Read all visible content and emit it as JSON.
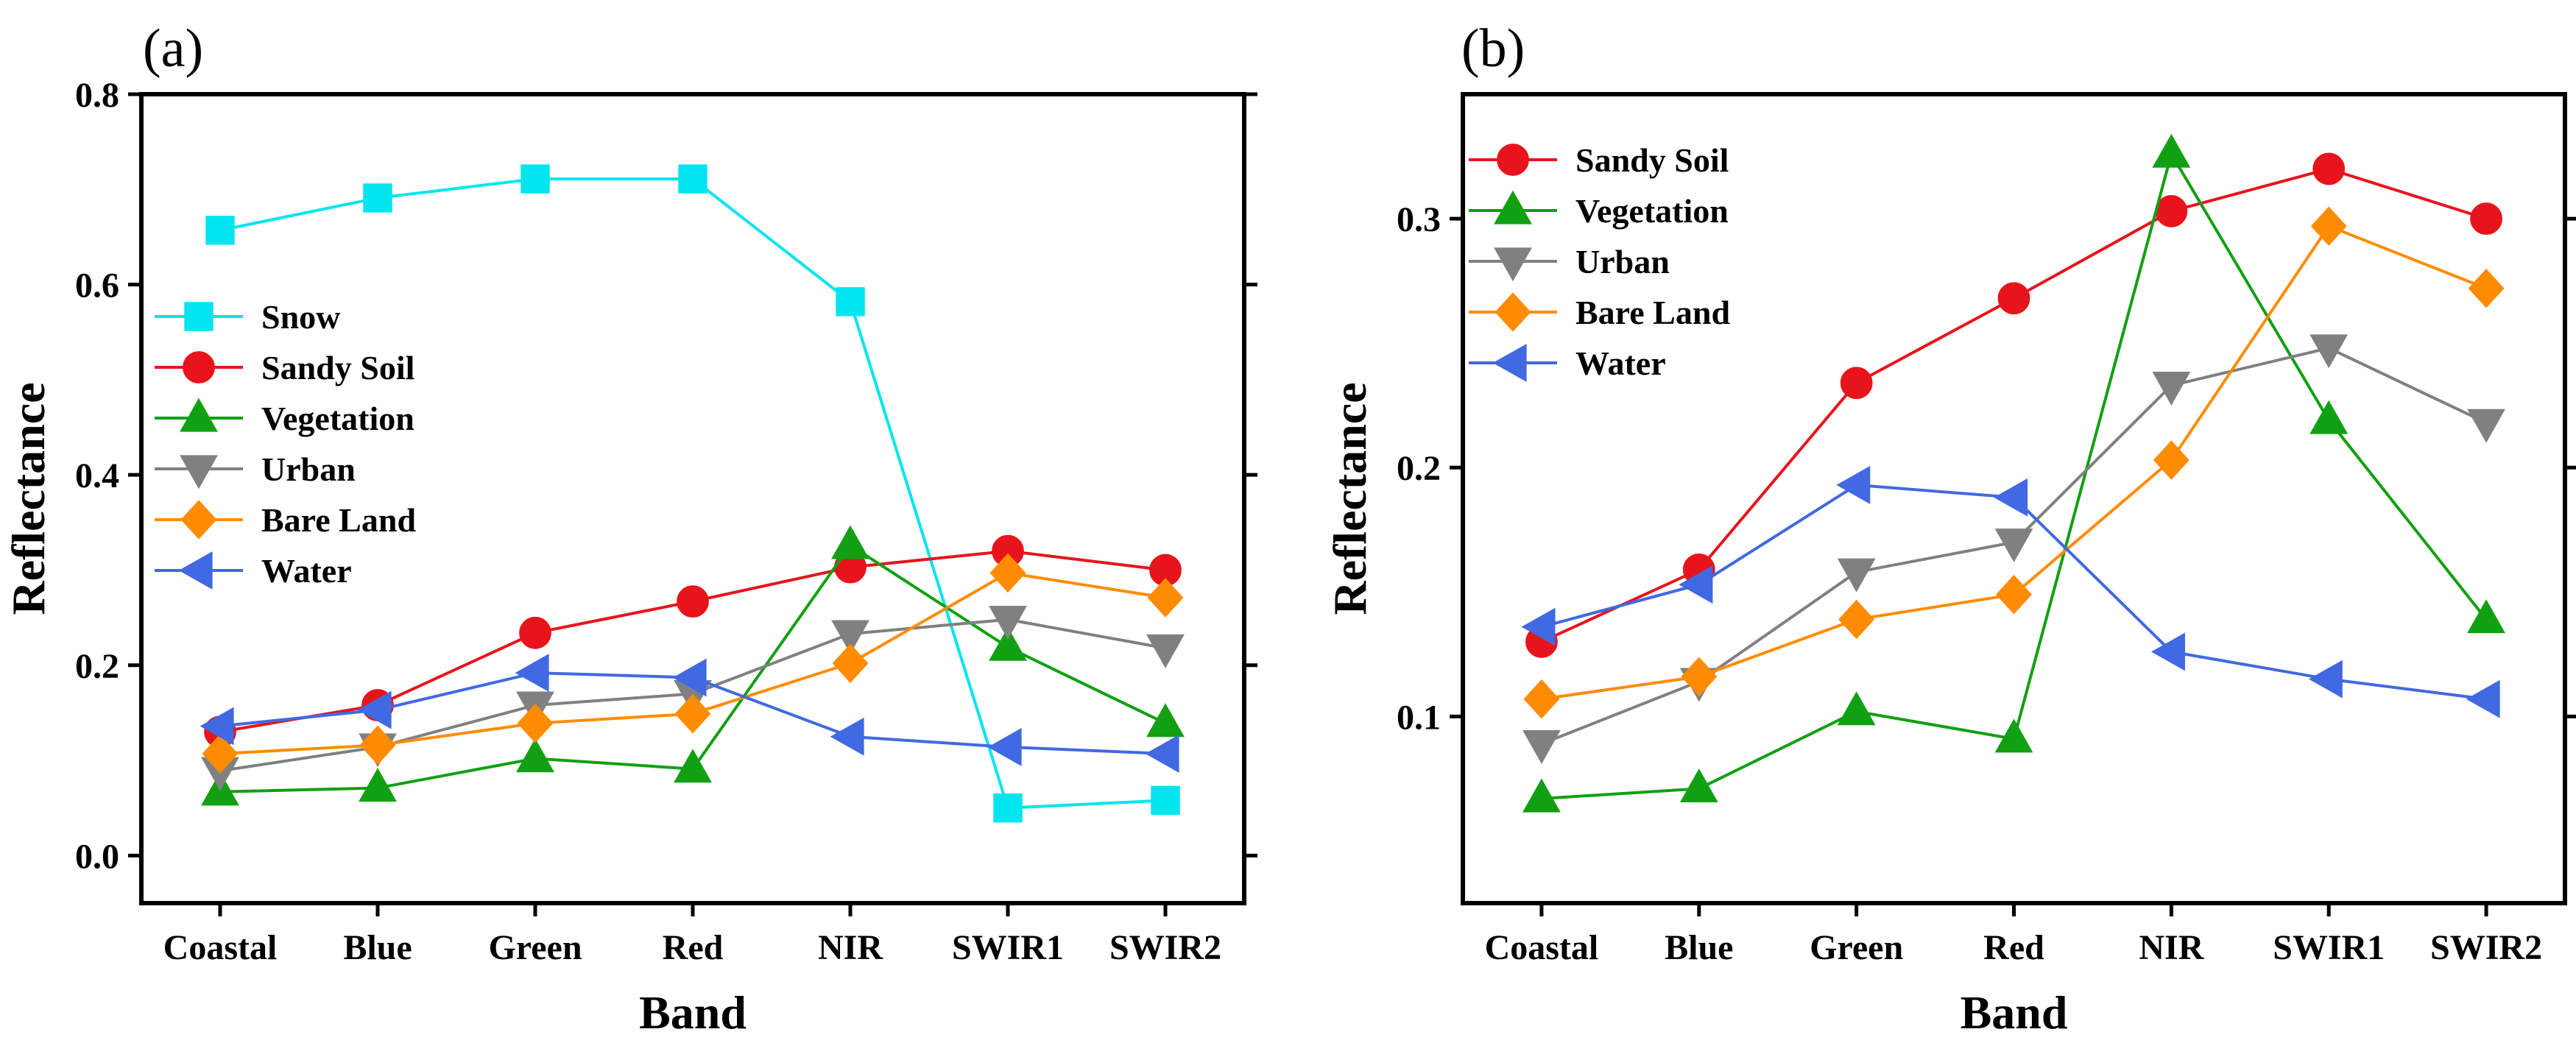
{
  "chart_data": [
    {
      "type": "line",
      "panel_label": "(a)",
      "xlabel": "Band",
      "ylabel": "Reflectance",
      "categories": [
        "Coastal",
        "Blue",
        "Green",
        "Red",
        "NIR",
        "SWIR1",
        "SWIR2"
      ],
      "ylim": [
        -0.05,
        0.8
      ],
      "yticks": [
        0.0,
        0.2,
        0.4,
        0.6,
        0.8
      ],
      "ytick_labels": [
        "0.0",
        "0.2",
        "0.4",
        "0.6",
        "0.8"
      ],
      "legend_position": "center-left",
      "series": [
        {
          "name": "Snow",
          "color": "#00e5ee",
          "marker": "square",
          "values": [
            0.657,
            0.691,
            0.711,
            0.711,
            0.582,
            0.05,
            0.058
          ]
        },
        {
          "name": "Sandy Soil",
          "color": "#e8141c",
          "marker": "circle",
          "values": [
            0.13,
            0.158,
            0.234,
            0.267,
            0.303,
            0.32,
            0.3
          ]
        },
        {
          "name": "Vegetation",
          "color": "#11a011",
          "marker": "triangle-up",
          "values": [
            0.067,
            0.071,
            0.102,
            0.091,
            0.326,
            0.219,
            0.139
          ]
        },
        {
          "name": "Urban",
          "color": "#808080",
          "marker": "triangle-down",
          "values": [
            0.089,
            0.114,
            0.158,
            0.17,
            0.233,
            0.248,
            0.218
          ]
        },
        {
          "name": "Bare Land",
          "color": "#ff8c00",
          "marker": "diamond",
          "values": [
            0.107,
            0.116,
            0.139,
            0.149,
            0.202,
            0.297,
            0.271
          ]
        },
        {
          "name": "Water",
          "color": "#4169e1",
          "marker": "triangle-left",
          "values": [
            0.136,
            0.153,
            0.192,
            0.187,
            0.125,
            0.114,
            0.107
          ]
        }
      ]
    },
    {
      "type": "line",
      "panel_label": "(b)",
      "xlabel": "Band",
      "ylabel": "Reflectance",
      "categories": [
        "Coastal",
        "Blue",
        "Green",
        "Red",
        "NIR",
        "SWIR1",
        "SWIR2"
      ],
      "ylim": [
        0.025,
        0.35
      ],
      "yticks": [
        0.1,
        0.2,
        0.3
      ],
      "ytick_labels": [
        "0.1",
        "0.2",
        "0.3"
      ],
      "legend_position": "top-left",
      "series": [
        {
          "name": "Sandy Soil",
          "color": "#e8141c",
          "marker": "circle",
          "values": [
            0.13,
            0.159,
            0.234,
            0.268,
            0.303,
            0.32,
            0.3
          ]
        },
        {
          "name": "Vegetation",
          "color": "#11a011",
          "marker": "triangle-up",
          "values": [
            0.067,
            0.071,
            0.102,
            0.091,
            0.326,
            0.219,
            0.139
          ]
        },
        {
          "name": "Urban",
          "color": "#808080",
          "marker": "triangle-down",
          "values": [
            0.089,
            0.114,
            0.158,
            0.17,
            0.233,
            0.248,
            0.218
          ]
        },
        {
          "name": "Bare Land",
          "color": "#ff8c00",
          "marker": "diamond",
          "values": [
            0.107,
            0.116,
            0.139,
            0.149,
            0.203,
            0.297,
            0.272
          ]
        },
        {
          "name": "Water",
          "color": "#4169e1",
          "marker": "triangle-left",
          "values": [
            0.136,
            0.153,
            0.193,
            0.188,
            0.126,
            0.115,
            0.107
          ]
        }
      ]
    }
  ]
}
